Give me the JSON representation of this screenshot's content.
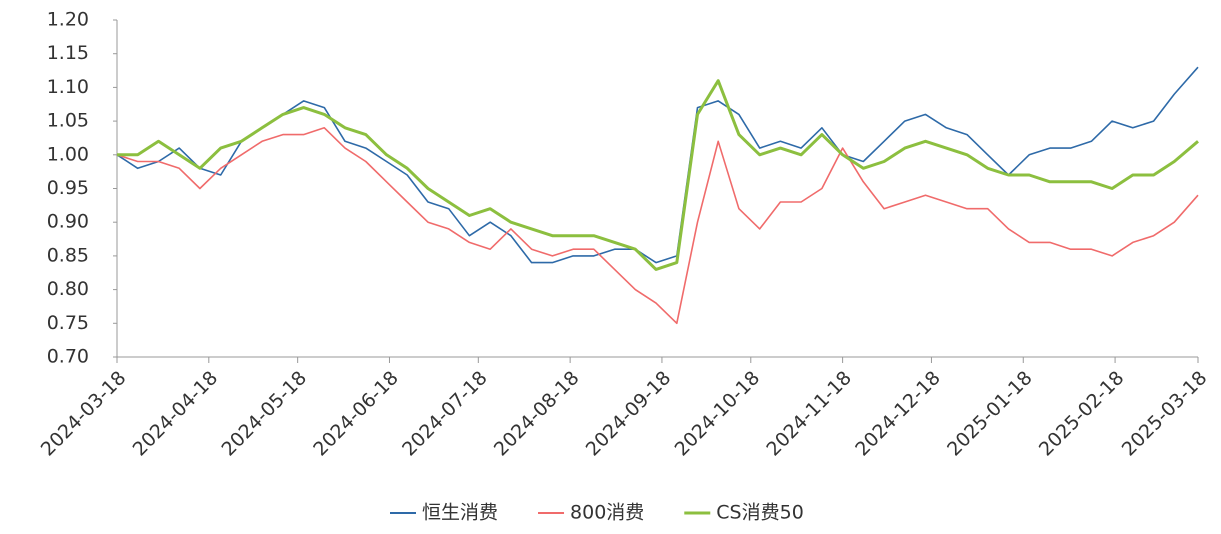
{
  "chart_data": {
    "type": "line",
    "x": [
      "2024-03-18",
      "2024-03-25",
      "2024-04-01",
      "2024-04-08",
      "2024-04-15",
      "2024-04-22",
      "2024-04-29",
      "2024-05-06",
      "2024-05-13",
      "2024-05-20",
      "2024-05-27",
      "2024-06-03",
      "2024-06-10",
      "2024-06-17",
      "2024-06-24",
      "2024-07-01",
      "2024-07-08",
      "2024-07-15",
      "2024-07-22",
      "2024-07-29",
      "2024-08-05",
      "2024-08-12",
      "2024-08-19",
      "2024-08-26",
      "2024-09-02",
      "2024-09-09",
      "2024-09-16",
      "2024-09-23",
      "2024-09-30",
      "2024-10-07",
      "2024-10-14",
      "2024-10-21",
      "2024-10-28",
      "2024-11-04",
      "2024-11-11",
      "2024-11-18",
      "2024-11-25",
      "2024-12-02",
      "2024-12-09",
      "2024-12-16",
      "2024-12-23",
      "2024-12-30",
      "2025-01-06",
      "2025-01-13",
      "2025-01-20",
      "2025-01-27",
      "2025-02-03",
      "2025-02-10",
      "2025-02-17",
      "2025-02-24",
      "2025-03-03",
      "2025-03-10",
      "2025-03-18"
    ],
    "series": [
      {
        "name": "恒生消费",
        "color": "#2e6aa8",
        "values": [
          1.0,
          0.98,
          0.99,
          1.01,
          0.98,
          0.97,
          1.02,
          1.04,
          1.06,
          1.08,
          1.07,
          1.02,
          1.01,
          0.99,
          0.97,
          0.93,
          0.92,
          0.88,
          0.9,
          0.88,
          0.84,
          0.84,
          0.85,
          0.85,
          0.86,
          0.86,
          0.84,
          0.85,
          1.07,
          1.08,
          1.06,
          1.01,
          1.02,
          1.01,
          1.04,
          1.0,
          0.99,
          1.02,
          1.05,
          1.06,
          1.04,
          1.03,
          1.0,
          0.97,
          1.0,
          1.01,
          1.01,
          1.02,
          1.05,
          1.04,
          1.05,
          1.09,
          1.13
        ]
      },
      {
        "name": "800消费",
        "color": "#f06b6b",
        "values": [
          1.0,
          0.99,
          0.99,
          0.98,
          0.95,
          0.98,
          1.0,
          1.02,
          1.03,
          1.03,
          1.04,
          1.01,
          0.99,
          0.96,
          0.93,
          0.9,
          0.89,
          0.87,
          0.86,
          0.89,
          0.86,
          0.85,
          0.86,
          0.86,
          0.83,
          0.8,
          0.78,
          0.75,
          0.9,
          1.02,
          0.92,
          0.89,
          0.93,
          0.93,
          0.95,
          1.01,
          0.96,
          0.92,
          0.93,
          0.94,
          0.93,
          0.92,
          0.92,
          0.89,
          0.87,
          0.87,
          0.86,
          0.86,
          0.85,
          0.87,
          0.88,
          0.9,
          0.94
        ]
      },
      {
        "name": "CS消费50",
        "color": "#8cbf3f",
        "values": [
          1.0,
          1.0,
          1.02,
          1.0,
          0.98,
          1.01,
          1.02,
          1.04,
          1.06,
          1.07,
          1.06,
          1.04,
          1.03,
          1.0,
          0.98,
          0.95,
          0.93,
          0.91,
          0.92,
          0.9,
          0.89,
          0.88,
          0.88,
          0.88,
          0.87,
          0.86,
          0.83,
          0.84,
          1.06,
          1.11,
          1.03,
          1.0,
          1.01,
          1.0,
          1.03,
          1.0,
          0.98,
          0.99,
          1.01,
          1.02,
          1.01,
          1.0,
          0.98,
          0.97,
          0.97,
          0.96,
          0.96,
          0.96,
          0.95,
          0.97,
          0.97,
          0.99,
          1.02
        ]
      }
    ],
    "xlim": [
      "2024-03-18",
      "2025-03-18"
    ],
    "xticks": [
      "2024-03-18",
      "2024-04-18",
      "2024-05-18",
      "2024-06-18",
      "2024-07-18",
      "2024-08-18",
      "2024-09-18",
      "2024-10-18",
      "2024-11-18",
      "2024-12-18",
      "2025-01-18",
      "2025-02-18",
      "2025-03-18"
    ],
    "ylim": [
      0.7,
      1.2
    ],
    "yticks": [
      {
        "value": 0.7,
        "label": "0.70"
      },
      0.75,
      {
        "value": 0.8,
        "label": "0.80"
      },
      0.85,
      {
        "value": 0.9,
        "label": "0.90"
      },
      0.95,
      {
        "value": 1.0,
        "label": "1.00"
      },
      1.05,
      {
        "value": 1.1,
        "label": "1.10"
      },
      1.15,
      {
        "value": 1.2,
        "label": "1.20"
      }
    ],
    "grid": false,
    "legend": "bottom"
  }
}
